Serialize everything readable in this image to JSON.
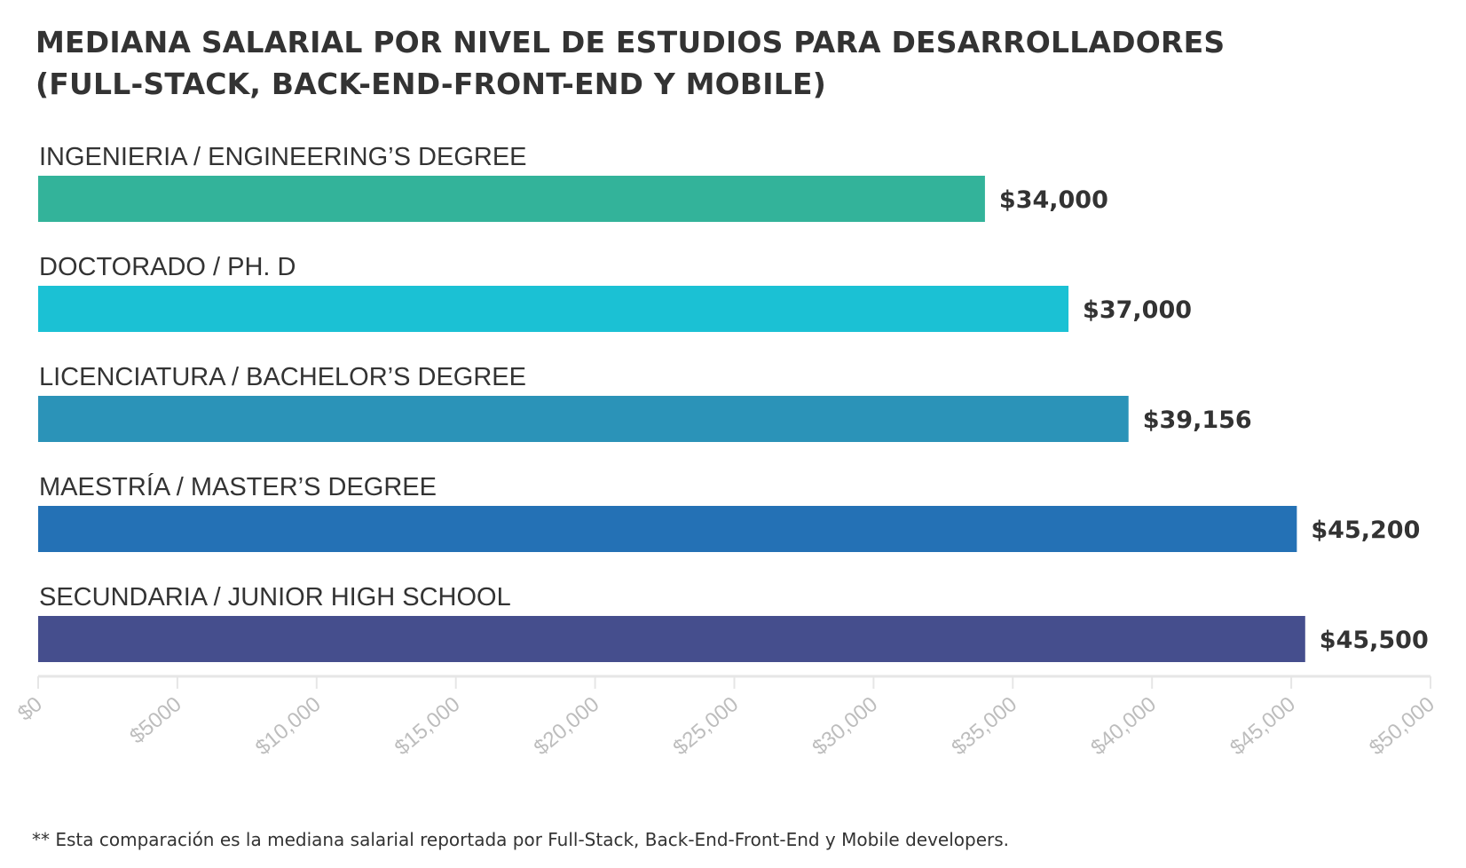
{
  "title": {
    "line1": "MEDIANA SALARIAL POR NIVEL DE ESTUDIOS PARA DESARROLLADORES",
    "line2": "(FULL-STACK, BACK-END-FRONT-END Y MOBILE)"
  },
  "footnote": "** Esta comparación es la mediana salarial reportada por Full-Stack, Back-End-Front-End y Mobile developers.",
  "chart_data": {
    "type": "bar",
    "orientation": "horizontal",
    "title": "MEDIANA SALARIAL POR NIVEL DE ESTUDIOS PARA DESARROLLADORES (FULL-STACK, BACK-END-FRONT-END Y MOBILE)",
    "categories": [
      "INGENIERIA / ENGINEERING’S DEGREE",
      "DOCTORADO / PH. D",
      "LICENCIATURA / BACHELOR’S DEGREE",
      "MAESTRÍA / MASTER’S DEGREE",
      "SECUNDARIA / JUNIOR HIGH SCHOOL"
    ],
    "values": [
      34000,
      37000,
      39156,
      45200,
      45500
    ],
    "value_labels": [
      "$34,000",
      "$37,000",
      "$39,156",
      "$45,200",
      "$45,500"
    ],
    "colors": [
      "#33b39a",
      "#1bc1d4",
      "#2b93b8",
      "#2471b5",
      "#454e8d"
    ],
    "xlim": [
      0,
      50000
    ],
    "xticks": [
      0,
      5000,
      10000,
      15000,
      20000,
      25000,
      30000,
      35000,
      40000,
      45000,
      50000
    ],
    "xtick_labels": [
      "$0",
      "$5000",
      "$10,000",
      "$15,000",
      "$20,000",
      "$25,000",
      "$30,000",
      "$35,000",
      "$40,000",
      "$45,000",
      "$50,000"
    ],
    "xlabel": "",
    "ylabel": "",
    "grid": false,
    "legend": "none"
  }
}
